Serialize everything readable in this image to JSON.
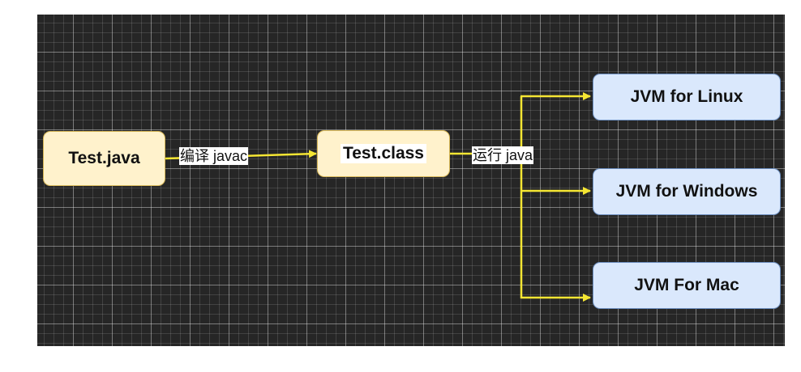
{
  "diagram": {
    "nodes": {
      "source": {
        "label": "Test.java"
      },
      "bytecode": {
        "label": "Test.class"
      },
      "jvm_linux": {
        "label": "JVM for Linux"
      },
      "jvm_windows": {
        "label": "JVM for Windows"
      },
      "jvm_mac": {
        "label": "JVM For Mac"
      }
    },
    "edges": {
      "compile": {
        "label": "编译 javac"
      },
      "run": {
        "label": "运行 java"
      }
    },
    "colors": {
      "canvas_background": "#262626",
      "connector": "#f5e633",
      "source_fill": "#fff2cc",
      "source_border": "#d6b656",
      "jvm_fill": "#dae8fc",
      "jvm_border": "#6c8ebf"
    }
  }
}
